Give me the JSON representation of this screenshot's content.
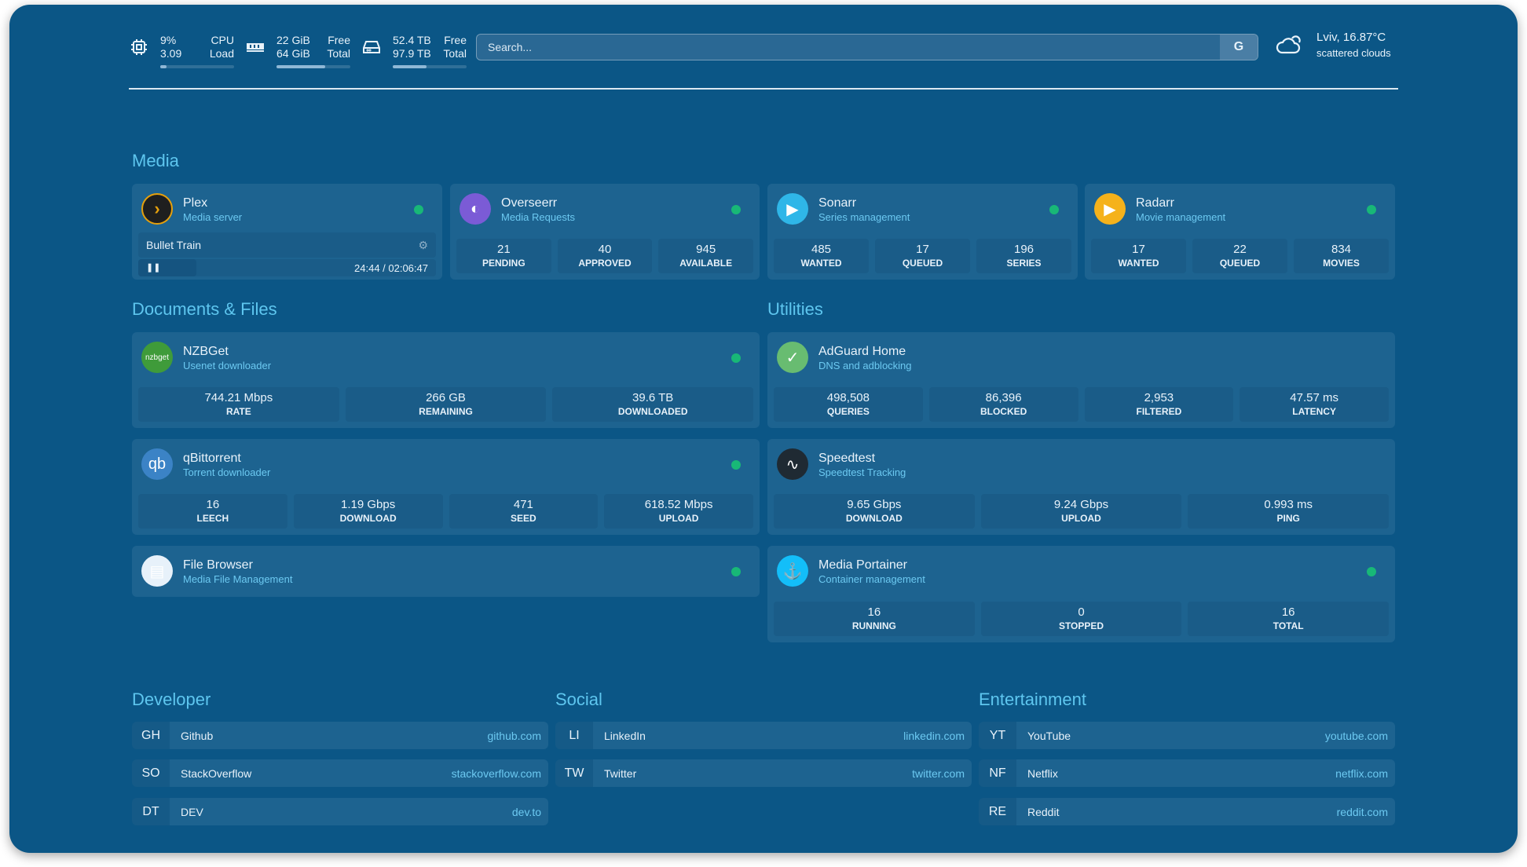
{
  "header": {
    "cpu": {
      "usage": "9%",
      "load": "3.09",
      "label1": "CPU",
      "label2": "Load",
      "fill": 0.09,
      "icon": "cpu-icon"
    },
    "memory": {
      "free": "22 GiB",
      "total": "64 GiB",
      "label1": "Free",
      "label2": "Total",
      "fill": 0.66,
      "icon": "memory-icon"
    },
    "disk": {
      "free": "52.4 TB",
      "total": "97.9 TB",
      "label1": "Free",
      "label2": "Total",
      "fill": 0.46,
      "icon": "disk-icon"
    },
    "search": {
      "placeholder": "Search...",
      "button": "G"
    },
    "weather": {
      "location": "Lviv, 16.87°C",
      "condition": "scattered clouds",
      "icon": "cloud-icon"
    }
  },
  "sections": {
    "media": "Media",
    "docs": "Documents & Files",
    "utilities": "Utilities",
    "developer": "Developer",
    "social": "Social",
    "entertainment": "Entertainment"
  },
  "plex": {
    "name": "Plex",
    "sub": "Media server",
    "title": "Bullet Train",
    "time": "24:44 / 02:06:47",
    "progress": 0.195,
    "color": "#e5a00d"
  },
  "services": [
    {
      "id": "overseerr",
      "name": "Overseerr",
      "sub": "Media Requests",
      "color": "#7b5bd6",
      "glyph": "◐",
      "stats": [
        [
          "21",
          "PENDING"
        ],
        [
          "40",
          "APPROVED"
        ],
        [
          "945",
          "AVAILABLE"
        ]
      ],
      "status": true
    },
    {
      "id": "sonarr",
      "name": "Sonarr",
      "sub": "Series management",
      "color": "#2fb6e8",
      "glyph": "▶",
      "stats": [
        [
          "485",
          "WANTED"
        ],
        [
          "17",
          "QUEUED"
        ],
        [
          "196",
          "SERIES"
        ]
      ],
      "status": true
    },
    {
      "id": "radarr",
      "name": "Radarr",
      "sub": "Movie management",
      "color": "#f5b21b",
      "glyph": "▶",
      "stats": [
        [
          "17",
          "WANTED"
        ],
        [
          "22",
          "QUEUED"
        ],
        [
          "834",
          "MOVIES"
        ]
      ],
      "status": true
    },
    {
      "id": "nzbget",
      "name": "NZBGet",
      "sub": "Usenet downloader",
      "color": "#3f9b3a",
      "glyph": "nzbget",
      "stats": [
        [
          "744.21 Mbps",
          "RATE"
        ],
        [
          "266 GB",
          "REMAINING"
        ],
        [
          "39.6 TB",
          "DOWNLOADED"
        ]
      ],
      "status": true
    },
    {
      "id": "qbittorrent",
      "name": "qBittorrent",
      "sub": "Torrent downloader",
      "color": "#3b83c6",
      "glyph": "qb",
      "stats": [
        [
          "16",
          "LEECH"
        ],
        [
          "1.19 Gbps",
          "DOWNLOAD"
        ],
        [
          "471",
          "SEED"
        ],
        [
          "618.52 Mbps",
          "UPLOAD"
        ]
      ],
      "status": true
    },
    {
      "id": "filebrowser",
      "name": "File Browser",
      "sub": "Media File Management",
      "color": "#e7f1fa",
      "glyph": "▤",
      "stats": [],
      "status": true
    },
    {
      "id": "adguard",
      "name": "AdGuard Home",
      "sub": "DNS and adblocking",
      "color": "#68bc71",
      "glyph": "✓",
      "stats": [
        [
          "498,508",
          "QUERIES"
        ],
        [
          "86,396",
          "BLOCKED"
        ],
        [
          "2,953",
          "FILTERED"
        ],
        [
          "47.57 ms",
          "LATENCY"
        ]
      ],
      "status": false
    },
    {
      "id": "speedtest",
      "name": "Speedtest",
      "sub": "Speedtest Tracking",
      "color": "#1f2a33",
      "glyph": "∿",
      "stats": [
        [
          "9.65 Gbps",
          "DOWNLOAD"
        ],
        [
          "9.24 Gbps",
          "UPLOAD"
        ],
        [
          "0.993 ms",
          "PING"
        ]
      ],
      "status": false
    },
    {
      "id": "portainer",
      "name": "Media Portainer",
      "sub": "Container management",
      "color": "#13bef9",
      "glyph": "⚓",
      "stats": [
        [
          "16",
          "RUNNING"
        ],
        [
          "0",
          "STOPPED"
        ],
        [
          "16",
          "TOTAL"
        ]
      ],
      "status": true
    }
  ],
  "bookmarks": [
    [
      [
        "GH",
        "Github",
        "github.com"
      ],
      [
        "SO",
        "StackOverflow",
        "stackoverflow.com"
      ],
      [
        "DT",
        "DEV",
        "dev.to"
      ]
    ],
    [
      [
        "LI",
        "LinkedIn",
        "linkedin.com"
      ],
      [
        "TW",
        "Twitter",
        "twitter.com"
      ]
    ],
    [
      [
        "YT",
        "YouTube",
        "youtube.com"
      ],
      [
        "NF",
        "Netflix",
        "netflix.com"
      ],
      [
        "RE",
        "Reddit",
        "reddit.com"
      ]
    ]
  ]
}
